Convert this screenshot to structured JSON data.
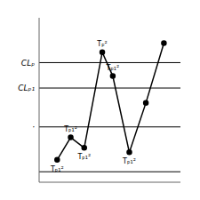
{
  "chart_data": {
    "type": "line",
    "x": [
      0.0,
      0.9,
      1.8,
      3.0,
      3.7,
      4.8,
      5.9,
      7.1
    ],
    "values": [
      2.0,
      3.5,
      2.8,
      9.2,
      7.6,
      2.5,
      5.8,
      9.8
    ],
    "color": "#000000",
    "marker": "circle",
    "point_labels": [
      "Tₚ₁²",
      "Tₚ₁²",
      "Tₚ₁²",
      "Tₚ²",
      "Tₚ₁²",
      "Tₚ₁²",
      null,
      null
    ],
    "reference_lines": [
      {
        "y": 8.5,
        "label": "CLₚ"
      },
      {
        "y": 6.8,
        "label": "CLₚ₁"
      },
      {
        "y": 4.2,
        "label": "·"
      },
      {
        "y": 1.2
      }
    ],
    "xlim": [
      -1.2,
      8.2
    ],
    "ylim": [
      0.5,
      11.5
    ],
    "xticks": [],
    "yticks": [],
    "tick_labels": false,
    "grid": false
  }
}
